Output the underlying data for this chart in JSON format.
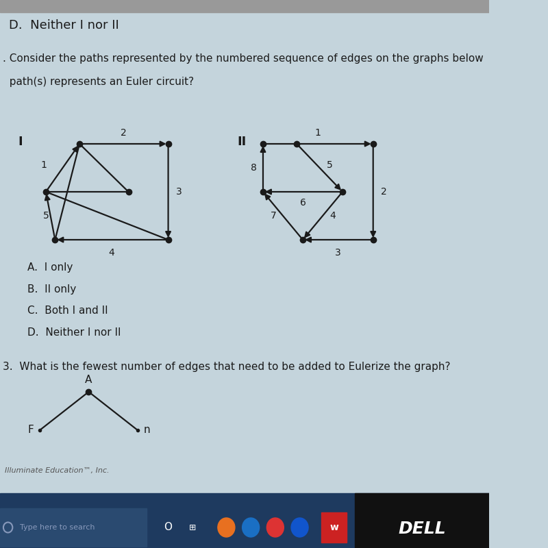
{
  "bg_color": "#c4d4dc",
  "title_line1": "D.  Neither I nor II",
  "question2_line1": ". Consider the paths represented by the numbered sequence of edges on the graphs below",
  "question2_line2": "  path(s) represents an Euler circuit?",
  "choices": [
    "A.  I only",
    "B.  II only",
    "C.  Both I and II",
    "D.  Neither I nor II"
  ],
  "question3": "3.  What is the fewest number of edges that need to be added to Eulerize the graph?",
  "footer": "Illuminate Education™, Inc.",
  "node_color": "#1a1a1a",
  "edge_color": "#1a1a1a",
  "text_color": "#1a1a1a"
}
